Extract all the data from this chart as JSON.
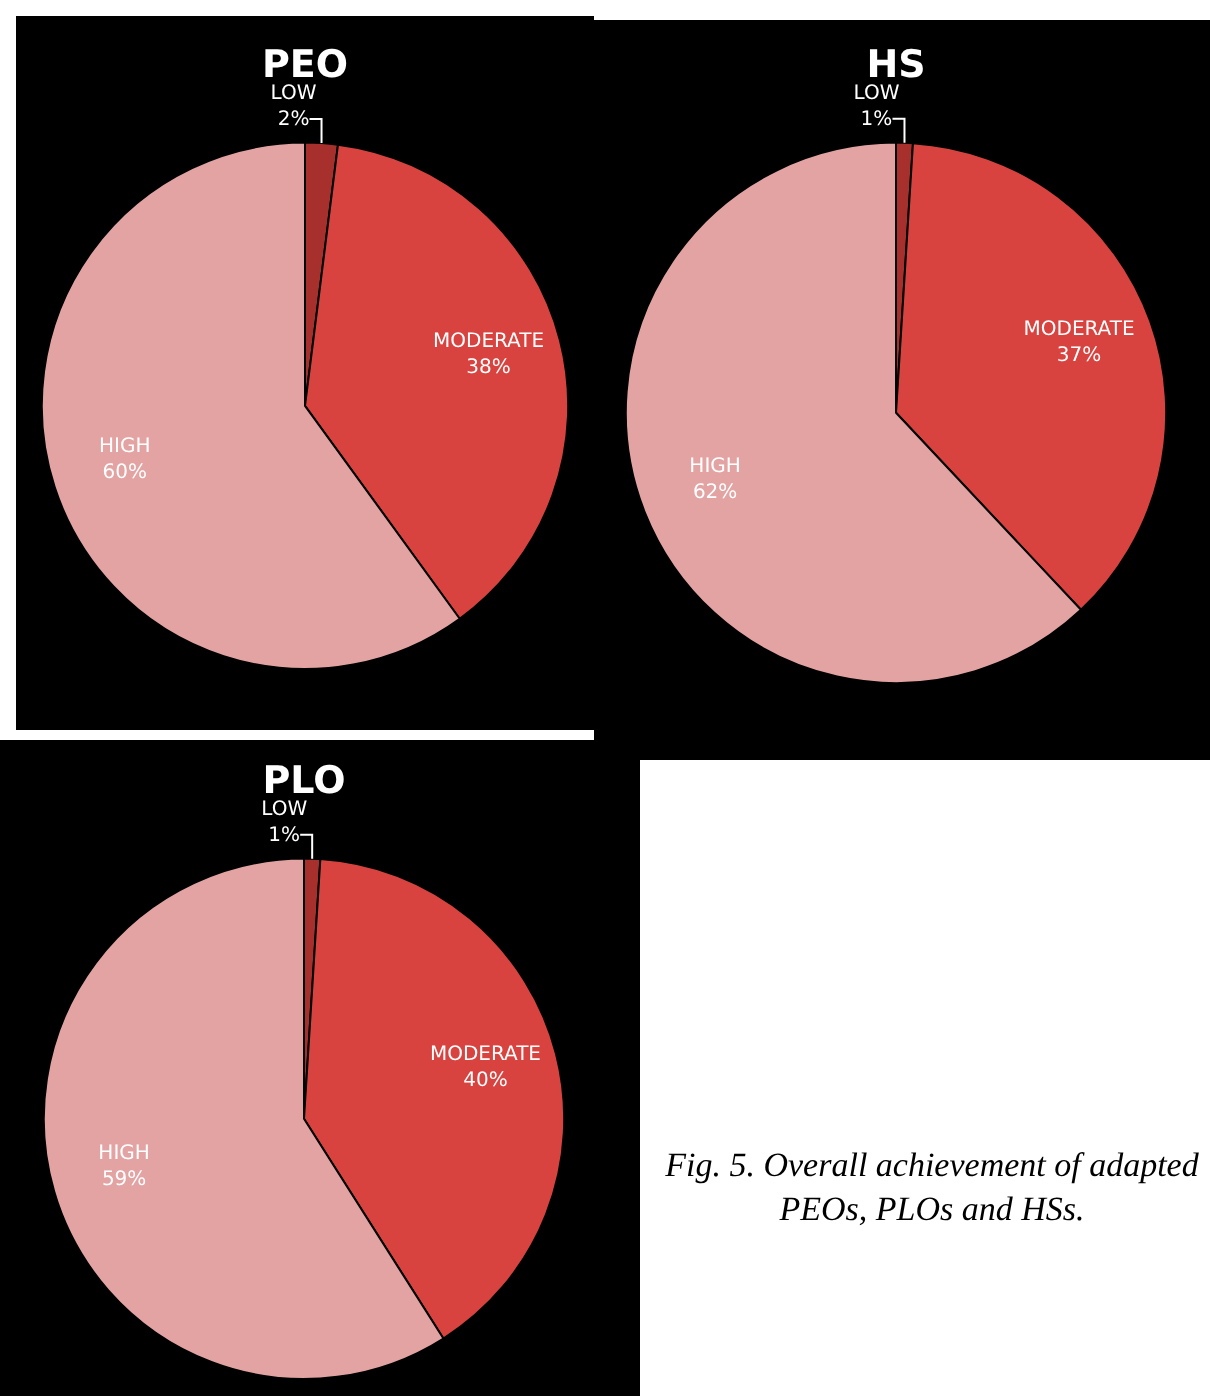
{
  "chart_data": [
    {
      "type": "pie",
      "title": "PEO",
      "categories": [
        "LOW",
        "MODERATE",
        "HIGH"
      ],
      "values": [
        2,
        38,
        60
      ],
      "value_labels": [
        "2%",
        "38%",
        "60%"
      ],
      "colors": [
        "#a8302c",
        "#d8433f",
        "#e3a3a3"
      ],
      "legend": false
    },
    {
      "type": "pie",
      "title": "HS",
      "categories": [
        "LOW",
        "MODERATE",
        "HIGH"
      ],
      "values": [
        1,
        37,
        62
      ],
      "value_labels": [
        "1%",
        "37%",
        "62%"
      ],
      "colors": [
        "#a8302c",
        "#d8433f",
        "#e3a3a3"
      ],
      "legend": false
    },
    {
      "type": "pie",
      "title": "PLO",
      "categories": [
        "LOW",
        "MODERATE",
        "HIGH"
      ],
      "values": [
        1,
        40,
        59
      ],
      "value_labels": [
        "1%",
        "40%",
        "59%"
      ],
      "colors": [
        "#a8302c",
        "#d8433f",
        "#e3a3a3"
      ],
      "legend": false,
      "annotations": [
        "Fig. 5.  Overall achievement of adapted PEOs, PLOs and HSs."
      ]
    }
  ]
}
